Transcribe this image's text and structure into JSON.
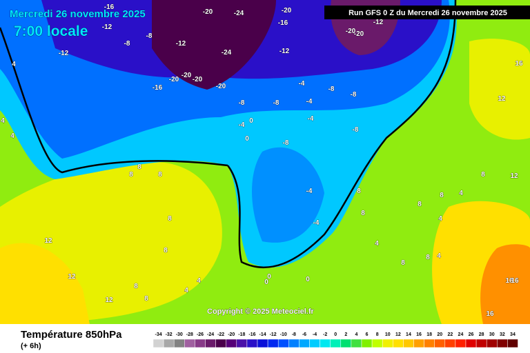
{
  "header": {
    "title": "Mercredi 26 novembre 2025",
    "subtitle": "7:00 locale",
    "run": "Run GFS 0 Z du Mercredi 26 novembre 2025"
  },
  "copyright": "Copyright © 2025 Meteociel.fr",
  "legend": {
    "title": "Température 850hPa",
    "step": "(+ 6h)",
    "ticks": [
      -34,
      -32,
      -30,
      -28,
      -26,
      -24,
      -22,
      -20,
      -18,
      -16,
      -14,
      -12,
      -10,
      -8,
      -6,
      -4,
      -2,
      0,
      2,
      4,
      6,
      8,
      10,
      12,
      14,
      16,
      18,
      20,
      22,
      24,
      26,
      28,
      30,
      32,
      34
    ],
    "colors": [
      "#d2d2d2",
      "#a8a8a8",
      "#828282",
      "#a060a0",
      "#883a88",
      "#6a1a6a",
      "#4a004a",
      "#560078",
      "#4a10a8",
      "#2a10c8",
      "#0a10d8",
      "#0028f0",
      "#0050ff",
      "#0080ff",
      "#00a8ff",
      "#00ccff",
      "#00e8f0",
      "#00f0b8",
      "#00e070",
      "#40e040",
      "#80f000",
      "#c0ff00",
      "#f0f000",
      "#ffe000",
      "#ffc800",
      "#ffa000",
      "#ff8000",
      "#ff6000",
      "#ff4000",
      "#ff2000",
      "#e00000",
      "#c00000",
      "#a00000",
      "#800000",
      "#600000"
    ]
  },
  "map": {
    "labels": [
      "-12",
      "-16",
      "-12",
      "-8",
      "-12",
      "-8",
      "-20",
      "-24",
      "-16",
      "-12",
      "-20",
      "-20",
      "-20",
      "-20",
      "-24",
      "-20",
      "-16",
      "-20",
      "-20",
      "-12",
      "-8",
      "-8",
      "-8",
      "-8",
      "-4",
      "-4",
      "-4",
      "-8",
      "-4",
      "-8",
      "-4",
      "-4",
      "0",
      "0",
      "4",
      "4",
      "4",
      "8",
      "8",
      "8",
      "8",
      "8",
      "8",
      "8",
      "8",
      "8",
      "8",
      "12",
      "12",
      "12",
      "12",
      "12",
      "16",
      "16",
      "16",
      "16",
      "4",
      "4",
      "4",
      "4",
      "0",
      "0",
      "0",
      "8",
      "8",
      "8",
      "8",
      "4",
      "4"
    ]
  }
}
